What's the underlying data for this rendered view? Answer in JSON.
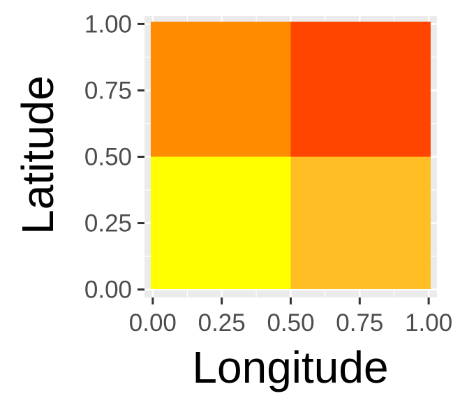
{
  "chart_data": {
    "type": "heatmap",
    "title": "",
    "xlabel": "Longitude",
    "ylabel": "Latitude",
    "xlim": [
      -0.03,
      1.03
    ],
    "ylim": [
      -0.03,
      1.03
    ],
    "x_ticks": [
      0.0,
      0.25,
      0.5,
      0.75,
      1.0
    ],
    "x_tick_labels": [
      "0.00",
      "0.25",
      "0.50",
      "0.75",
      "1.00"
    ],
    "y_ticks": [
      0.0,
      0.25,
      0.5,
      0.75,
      1.0
    ],
    "y_tick_labels": [
      "0.00",
      "0.25",
      "0.50",
      "0.75",
      "1.00"
    ],
    "grid": true,
    "legend": "none",
    "panel_background": "#ebebeb",
    "grid_color": "#ffffff",
    "cells": [
      {
        "x0": 0.0,
        "x1": 0.5,
        "y0": 0.0,
        "y1": 0.5,
        "color": "#ffff00"
      },
      {
        "x0": 0.5,
        "x1": 1.03,
        "y0": 0.0,
        "y1": 0.5,
        "color": "#ffbf24"
      },
      {
        "x0": 0.0,
        "x1": 0.5,
        "y0": 0.5,
        "y1": 1.03,
        "color": "#ff8c00"
      },
      {
        "x0": 0.5,
        "x1": 1.03,
        "y0": 0.5,
        "y1": 1.03,
        "color": "#ff4500"
      }
    ]
  }
}
